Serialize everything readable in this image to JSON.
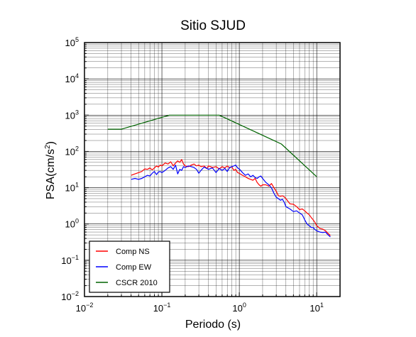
{
  "chart_data": {
    "type": "line",
    "title": "Sitio SJUD",
    "xlabel": "Periodo (s)",
    "ylabel_main": "PSA(cm/s",
    "ylabel_sup": "2",
    "ylabel_end": ")",
    "x_scale": "log",
    "y_scale": "log",
    "xlim": [
      0.01,
      20
    ],
    "ylim": [
      0.01,
      100000
    ],
    "grid": true,
    "legend_position": "bottom-left",
    "x_ticks": [
      {
        "value": 0.01,
        "base": "10",
        "exp": "−2"
      },
      {
        "value": 0.1,
        "base": "10",
        "exp": "−1"
      },
      {
        "value": 1,
        "base": "10",
        "exp": "0"
      },
      {
        "value": 10,
        "base": "10",
        "exp": "1"
      }
    ],
    "y_ticks": [
      {
        "value": 0.01,
        "base": "10",
        "exp": "−2"
      },
      {
        "value": 0.1,
        "base": "10",
        "exp": "−1"
      },
      {
        "value": 1,
        "base": "10",
        "exp": "0"
      },
      {
        "value": 10,
        "base": "10",
        "exp": "1"
      },
      {
        "value": 100,
        "base": "10",
        "exp": "2"
      },
      {
        "value": 1000,
        "base": "10",
        "exp": "3"
      },
      {
        "value": 10000,
        "base": "10",
        "exp": "4"
      },
      {
        "value": 100000,
        "base": "10",
        "exp": "5"
      }
    ],
    "series": [
      {
        "name": "Comp NS",
        "color": "#ff0000",
        "x": [
          0.04,
          0.045,
          0.05,
          0.055,
          0.06,
          0.065,
          0.07,
          0.075,
          0.08,
          0.085,
          0.09,
          0.095,
          0.1,
          0.11,
          0.12,
          0.13,
          0.14,
          0.15,
          0.16,
          0.17,
          0.18,
          0.19,
          0.2,
          0.22,
          0.24,
          0.26,
          0.28,
          0.3,
          0.32,
          0.35,
          0.38,
          0.4,
          0.45,
          0.5,
          0.55,
          0.6,
          0.65,
          0.7,
          0.75,
          0.8,
          0.85,
          0.9,
          0.95,
          1.0,
          1.1,
          1.2,
          1.3,
          1.4,
          1.5,
          1.6,
          1.7,
          1.8,
          1.9,
          2.0,
          2.2,
          2.4,
          2.6,
          2.8,
          3.0,
          3.2,
          3.4,
          3.6,
          3.8,
          4.0,
          4.5,
          5.0,
          5.5,
          6.0,
          6.5,
          7.0,
          7.5,
          8.0,
          8.5,
          9.0,
          9.5,
          10.0,
          11.0,
          12.0,
          13.0,
          14.0,
          15.0
        ],
        "values": [
          22,
          24,
          26,
          28,
          33,
          32,
          35,
          31,
          35,
          40,
          37,
          42,
          40,
          48,
          45,
          52,
          40,
          48,
          55,
          50,
          60,
          45,
          40,
          38,
          42,
          45,
          40,
          42,
          38,
          40,
          34,
          40,
          36,
          38,
          33,
          38,
          35,
          40,
          35,
          38,
          30,
          32,
          26,
          25,
          22,
          20,
          18,
          17,
          16,
          18,
          14,
          12,
          11,
          12,
          12,
          11,
          13,
          10,
          8,
          6,
          5.8,
          6,
          5.6,
          5,
          3.6,
          3.5,
          3,
          2.5,
          2.6,
          2.3,
          2,
          1.8,
          1.5,
          1.3,
          1.1,
          0.9,
          0.75,
          0.72,
          0.65,
          0.55,
          0.48
        ]
      },
      {
        "name": "Comp EW",
        "color": "#0000ff",
        "x": [
          0.04,
          0.045,
          0.05,
          0.055,
          0.06,
          0.065,
          0.07,
          0.075,
          0.08,
          0.085,
          0.09,
          0.095,
          0.1,
          0.11,
          0.12,
          0.13,
          0.14,
          0.15,
          0.16,
          0.17,
          0.18,
          0.19,
          0.2,
          0.22,
          0.24,
          0.26,
          0.28,
          0.3,
          0.32,
          0.35,
          0.38,
          0.4,
          0.45,
          0.5,
          0.55,
          0.6,
          0.65,
          0.7,
          0.75,
          0.8,
          0.85,
          0.9,
          0.95,
          1.0,
          1.1,
          1.2,
          1.3,
          1.4,
          1.5,
          1.6,
          1.7,
          1.8,
          1.9,
          2.0,
          2.2,
          2.4,
          2.6,
          2.8,
          3.0,
          3.2,
          3.4,
          3.6,
          3.8,
          4.0,
          4.5,
          5.0,
          5.5,
          6.0,
          6.5,
          7.0,
          7.5,
          8.0,
          8.5,
          9.0,
          9.5,
          10.0,
          11.0,
          12.0,
          13.0,
          14.0,
          15.0
        ],
        "values": [
          17,
          18,
          17,
          18,
          20,
          22,
          21,
          25,
          28,
          23,
          27,
          28,
          26,
          30,
          35,
          38,
          32,
          42,
          24,
          32,
          30,
          38,
          36,
          40,
          38,
          36,
          32,
          25,
          30,
          37,
          34,
          32,
          35,
          26,
          34,
          30,
          34,
          28,
          36,
          38,
          40,
          42,
          35,
          33,
          26,
          22,
          24,
          20,
          22,
          19,
          18,
          20,
          21,
          18,
          14,
          12,
          10,
          7,
          5.5,
          5,
          4.5,
          4.8,
          4,
          3,
          2.6,
          2.2,
          2.3,
          2.0,
          1.8,
          1.3,
          1.0,
          0.9,
          0.8,
          0.8,
          0.7,
          0.65,
          0.6,
          0.58,
          0.6,
          0.5,
          0.44
        ]
      },
      {
        "name": "CSCR 2010",
        "color": "#006400",
        "x": [
          0.02,
          0.03,
          0.125,
          0.55,
          3.5,
          10
        ],
        "values": [
          410,
          410,
          1000,
          1000,
          160,
          20
        ]
      }
    ]
  }
}
